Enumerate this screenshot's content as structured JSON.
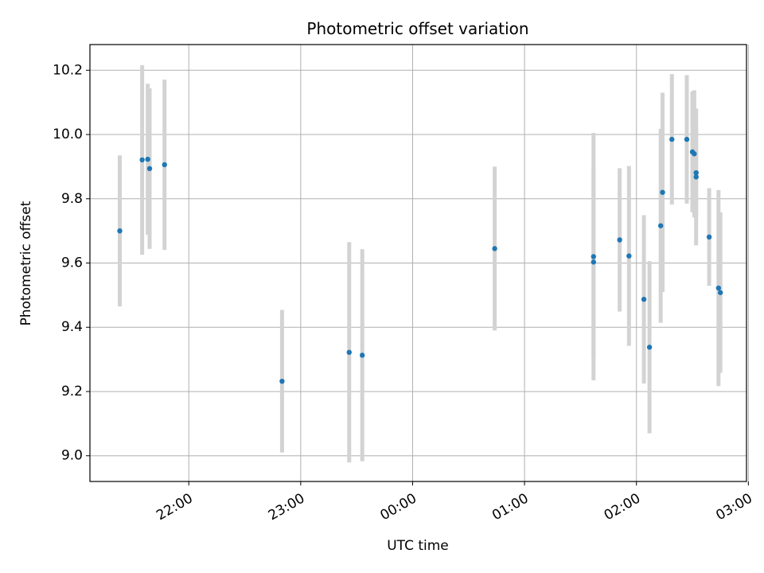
{
  "chart_data": {
    "type": "scatter",
    "title": "Photometric offset variation",
    "xlabel": "UTC time",
    "ylabel": "Photometric offset",
    "x_kind": "time",
    "xlim": [
      "21:07",
      "02:59"
    ],
    "ylim": [
      8.92,
      10.28
    ],
    "x_ticks": [
      "22:00",
      "23:00",
      "00:00",
      "01:00",
      "02:00",
      "03:00"
    ],
    "y_ticks": [
      9.0,
      9.2,
      9.4,
      9.6,
      9.8,
      10.0,
      10.2
    ],
    "grid": true,
    "colors": {
      "point": "#1f77b4",
      "errorbar": "#d3d3d3"
    },
    "series": [
      {
        "points": [
          {
            "x": "21:23",
            "y": 9.7,
            "err": 0.235
          },
          {
            "x": "21:35",
            "y": 9.921,
            "err": 0.295
          },
          {
            "x": "21:38",
            "y": 9.923,
            "err": 0.235
          },
          {
            "x": "21:39",
            "y": 9.894,
            "err": 0.25
          },
          {
            "x": "21:47",
            "y": 9.906,
            "err": 0.265
          },
          {
            "x": "22:50",
            "y": 9.232,
            "err": 0.222
          },
          {
            "x": "23:26",
            "y": 9.322,
            "err": 0.343
          },
          {
            "x": "23:33",
            "y": 9.313,
            "err": 0.33
          },
          {
            "x": "00:44",
            "y": 9.645,
            "err": 0.255
          },
          {
            "x": "01:37",
            "y": 9.62,
            "err": 0.385
          },
          {
            "x": "01:37",
            "y": 9.603,
            "err": 0.297
          },
          {
            "x": "01:51",
            "y": 9.672,
            "err": 0.223
          },
          {
            "x": "01:56",
            "y": 9.622,
            "err": 0.28
          },
          {
            "x": "02:04",
            "y": 9.487,
            "err": 0.262
          },
          {
            "x": "02:07",
            "y": 9.338,
            "err": 0.268
          },
          {
            "x": "02:13",
            "y": 9.716,
            "err": 0.302
          },
          {
            "x": "02:14",
            "y": 9.82,
            "err": 0.31
          },
          {
            "x": "02:19",
            "y": 9.985,
            "err": 0.203
          },
          {
            "x": "02:27",
            "y": 9.985,
            "err": 0.2
          },
          {
            "x": "02:30",
            "y": 9.946,
            "err": 0.188
          },
          {
            "x": "02:31",
            "y": 9.94,
            "err": 0.198
          },
          {
            "x": "02:32",
            "y": 9.881,
            "err": 0.14
          },
          {
            "x": "02:32",
            "y": 9.868,
            "err": 0.213
          },
          {
            "x": "02:39",
            "y": 9.681,
            "err": 0.152
          },
          {
            "x": "02:44",
            "y": 9.522,
            "err": 0.305
          },
          {
            "x": "02:45",
            "y": 9.508,
            "err": 0.25
          }
        ]
      }
    ]
  }
}
